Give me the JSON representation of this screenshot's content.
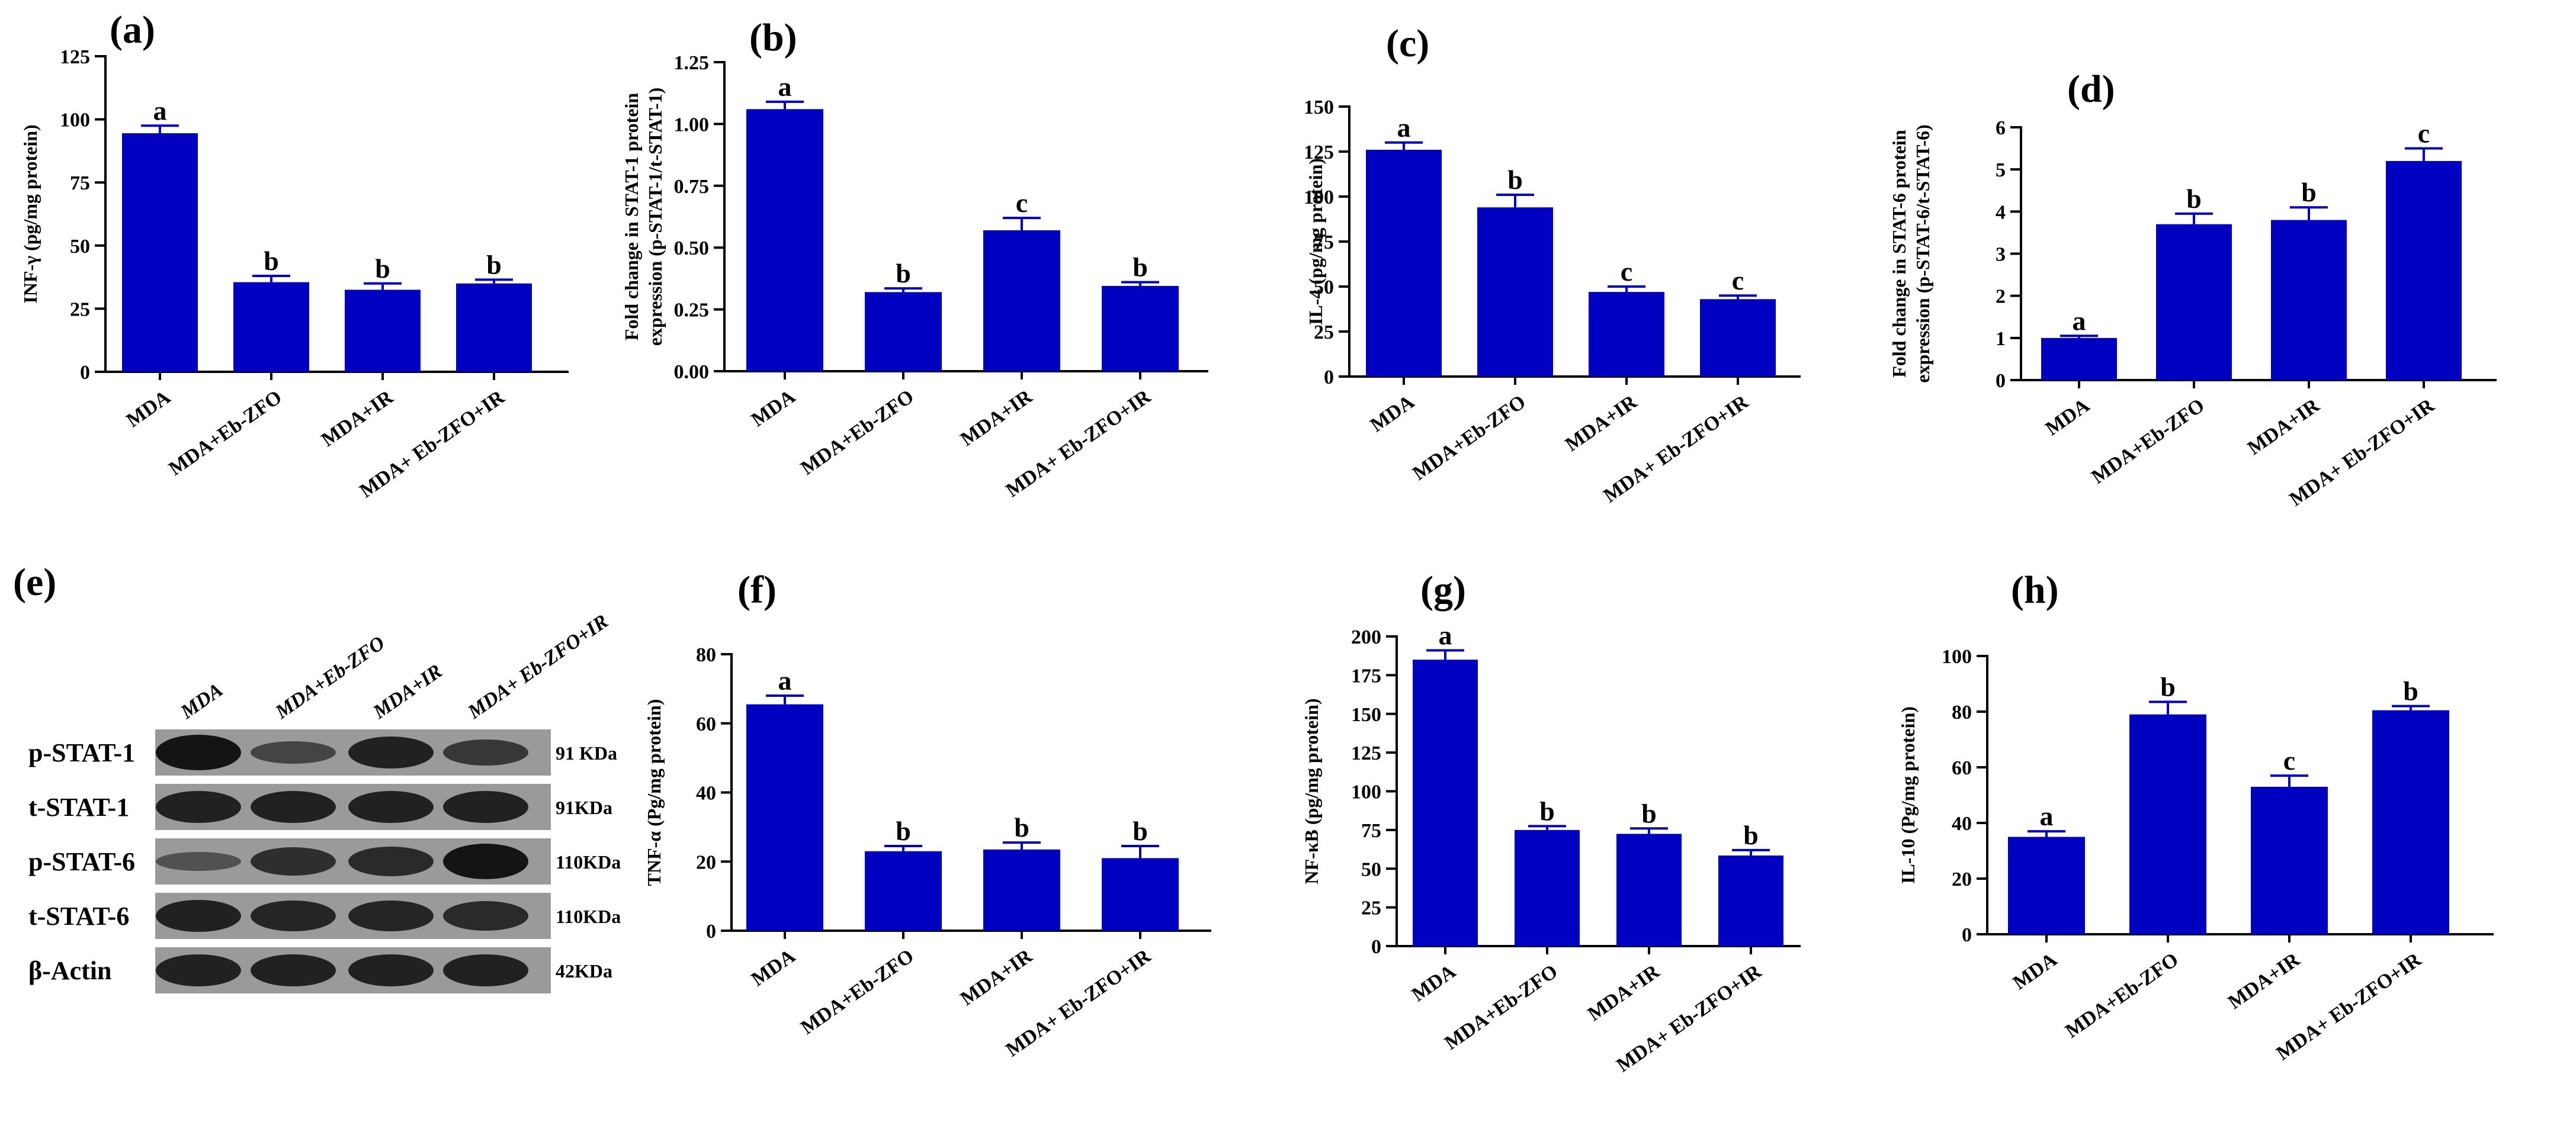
{
  "colors": {
    "bar": "#0000c0",
    "axis": "#000000",
    "blot_bg": "#9a9a9a",
    "band": "#141414"
  },
  "chart_data": [
    {
      "panel": "(a)",
      "type": "bar",
      "ylabel": "INF-γ (pg/mg protein)",
      "categories": [
        "MDA",
        "MDA+Eb-ZFO",
        "MDA+IR",
        "MDA+ Eb-ZFO+IR"
      ],
      "values": [
        94.5,
        35.5,
        32.5,
        35
      ],
      "errors": [
        3,
        2.5,
        2.5,
        1.5
      ],
      "sig": [
        "a",
        "b",
        "b",
        "b"
      ],
      "ylim": [
        0,
        125
      ],
      "ticks": [
        "0",
        "25",
        "50",
        "75",
        "100",
        "125"
      ]
    },
    {
      "panel": "(b)",
      "type": "bar",
      "ylabel": [
        "Fold change in STAT-1 protein",
        "expression (p-STAT-1/t-STAT-1)"
      ],
      "categories": [
        "MDA",
        "MDA+Eb-ZFO",
        "MDA+IR",
        "MDA+ Eb-ZFO+IR"
      ],
      "values": [
        1.06,
        0.32,
        0.57,
        0.345
      ],
      "errors": [
        0.03,
        0.015,
        0.05,
        0.015
      ],
      "sig": [
        "a",
        "b",
        "c",
        "b"
      ],
      "ylim": [
        0,
        1.25
      ],
      "ticks": [
        "0.00",
        "0.25",
        "0.50",
        "0.75",
        "1.00",
        "1.25"
      ]
    },
    {
      "panel": "(c)",
      "type": "bar",
      "ylabel": "IL-4 (pg/mg protein)",
      "categories": [
        "MDA",
        "MDA+Eb-ZFO",
        "MDA+IR",
        "MDA+ Eb-ZFO+IR"
      ],
      "values": [
        126,
        94,
        47,
        43
      ],
      "errors": [
        4,
        7,
        3,
        2
      ],
      "sig": [
        "a",
        "b",
        "c",
        "c"
      ],
      "ylim": [
        0,
        150
      ],
      "ticks": [
        "0",
        "25",
        "50",
        "75",
        "100",
        "125",
        "150"
      ]
    },
    {
      "panel": "(d)",
      "type": "bar",
      "ylabel": [
        "Fold change in STAT-6 protein",
        "expression (p-STAT-6/t-STAT-6)"
      ],
      "categories": [
        "MDA",
        "MDA+Eb-ZFO",
        "MDA+IR",
        "MDA+ Eb-ZFO+IR"
      ],
      "values": [
        1.0,
        3.7,
        3.8,
        5.2
      ],
      "errors": [
        0.05,
        0.25,
        0.3,
        0.3
      ],
      "sig": [
        "a",
        "b",
        "b",
        "c"
      ],
      "ylim": [
        0,
        6
      ],
      "ticks": [
        "0",
        "1",
        "2",
        "3",
        "4",
        "5",
        "6"
      ]
    },
    {
      "panel": "(f)",
      "type": "bar",
      "ylabel": "TNF-α (Pg/mg protein)",
      "categories": [
        "MDA",
        "MDA+Eb-ZFO",
        "MDA+IR",
        "MDA+ Eb-ZFO+IR"
      ],
      "values": [
        65.5,
        23,
        23.5,
        21
      ],
      "errors": [
        2.5,
        1.5,
        2,
        3.5
      ],
      "sig": [
        "a",
        "b",
        "b",
        "b"
      ],
      "ylim": [
        0,
        80
      ],
      "ticks": [
        "0",
        "20",
        "40",
        "60",
        "80"
      ]
    },
    {
      "panel": "(g)",
      "type": "bar",
      "ylabel": "NF-κB (pg/mg protein)",
      "categories": [
        "MDA",
        "MDA+Eb-ZFO",
        "MDA+IR",
        "MDA+ Eb-ZFO+IR"
      ],
      "values": [
        185,
        75,
        72.5,
        58.5
      ],
      "errors": [
        6,
        2.5,
        3.5,
        3.5
      ],
      "sig": [
        "a",
        "b",
        "b",
        "b"
      ],
      "ylim": [
        0,
        200
      ],
      "ticks": [
        "0",
        "25",
        "50",
        "75",
        "100",
        "125",
        "150",
        "175",
        "200"
      ]
    },
    {
      "panel": "(h)",
      "type": "bar",
      "ylabel": "IL-10 (Pg/mg protein)",
      "categories": [
        "MDA",
        "MDA+Eb-ZFO",
        "MDA+IR",
        "MDA+ Eb-ZFO+IR"
      ],
      "values": [
        35,
        79,
        53,
        80.5
      ],
      "errors": [
        2,
        4.5,
        4,
        1.5
      ],
      "sig": [
        "a",
        "b",
        "c",
        "b"
      ],
      "ylim": [
        0,
        100
      ],
      "ticks": [
        "0",
        "20",
        "40",
        "60",
        "80",
        "100"
      ]
    }
  ],
  "blot": {
    "panel": "(e)",
    "lanes": [
      "MDA",
      "MDA+Eb-ZFO",
      "MDA+IR",
      "MDA+ Eb-ZFO+IR"
    ],
    "rows": [
      {
        "label": "p-STAT-1",
        "kda": "91 KDa",
        "intensity": [
          1.0,
          0.45,
          0.85,
          0.6
        ]
      },
      {
        "label": "t-STAT-1",
        "kda": "91KDa",
        "intensity": [
          0.85,
          0.85,
          0.85,
          0.85
        ]
      },
      {
        "label": "p-STAT-6",
        "kda": "110KDa",
        "intensity": [
          0.3,
          0.7,
          0.75,
          1.0
        ]
      },
      {
        "label": "t-STAT-6",
        "kda": "110KDa",
        "intensity": [
          0.85,
          0.8,
          0.8,
          0.75
        ]
      },
      {
        "label": "β-Actin",
        "kda": "42KDa",
        "intensity": [
          0.85,
          0.85,
          0.85,
          0.85
        ]
      }
    ]
  }
}
